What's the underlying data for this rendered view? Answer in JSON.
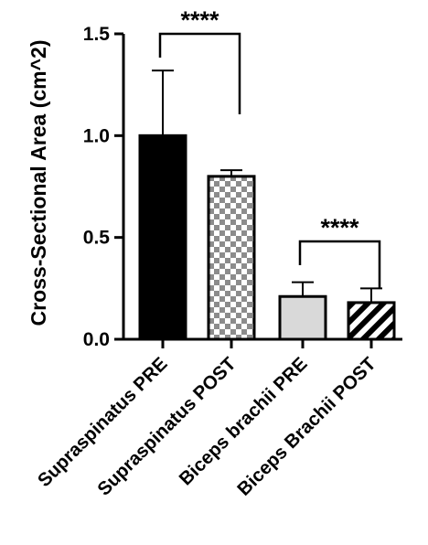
{
  "chart_data": {
    "type": "bar",
    "title": "",
    "xlabel": "",
    "ylabel": "Cross-Sectional Area (cm^2)",
    "ylim": [
      0,
      1.5
    ],
    "yticks": [
      0.0,
      0.5,
      1.0,
      1.5
    ],
    "ytick_labels": [
      "0.0",
      "0.5",
      "1.0",
      "1.5"
    ],
    "grid": false,
    "categories": [
      "Supraspinatus PRE",
      "Supraspinatus POST",
      "Biceps brachii PRE",
      "Biceps Brachii POST"
    ],
    "values": [
      1.0,
      0.8,
      0.21,
      0.18
    ],
    "error_upper": [
      0.32,
      0.03,
      0.07,
      0.07
    ],
    "bar_fills": [
      "solid-black",
      "checkerboard",
      "solid-light-gray",
      "diagonal-stripes"
    ],
    "colors": {
      "dark": "#000000",
      "light_gray": "#d9d9d9",
      "checker_gray": "#9a9a9a",
      "background": "#ffffff"
    },
    "annotations": [
      {
        "label": "****",
        "between": [
          0,
          1
        ]
      },
      {
        "label": "****",
        "between": [
          2,
          3
        ]
      }
    ]
  }
}
